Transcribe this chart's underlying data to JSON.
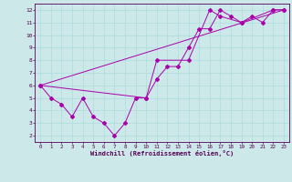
{
  "xlabel": "Windchill (Refroidissement éolien,°C)",
  "bg_color": "#cce8e8",
  "line_color": "#aa00aa",
  "xlim": [
    -0.5,
    23.5
  ],
  "ylim": [
    1.5,
    12.5
  ],
  "xticks": [
    0,
    1,
    2,
    3,
    4,
    5,
    6,
    7,
    8,
    9,
    10,
    11,
    12,
    13,
    14,
    15,
    16,
    17,
    18,
    19,
    20,
    21,
    22,
    23
  ],
  "yticks": [
    2,
    3,
    4,
    5,
    6,
    7,
    8,
    9,
    10,
    11,
    12
  ],
  "line1_x": [
    0,
    1,
    2,
    3,
    4,
    5,
    6,
    7,
    8,
    9,
    10,
    11,
    12,
    13,
    14,
    15,
    16,
    17,
    18,
    19,
    20,
    21,
    22,
    23
  ],
  "line1_y": [
    6,
    5,
    4.5,
    3.5,
    5,
    3.5,
    3,
    2,
    3,
    5,
    5,
    6.5,
    7.5,
    7.5,
    9,
    10.5,
    10.5,
    12,
    11.5,
    11,
    11.5,
    11,
    12,
    12
  ],
  "line2_x": [
    0,
    10,
    11,
    14,
    16,
    17,
    19,
    22,
    23
  ],
  "line2_y": [
    6,
    5,
    8,
    8,
    12,
    11.5,
    11,
    12,
    12
  ],
  "line3_x": [
    0,
    23
  ],
  "line3_y": [
    6,
    12
  ],
  "grid_color": "#aadddd",
  "label_color": "#550055",
  "tick_fontsize": 4.2,
  "xlabel_fontsize": 5.0
}
